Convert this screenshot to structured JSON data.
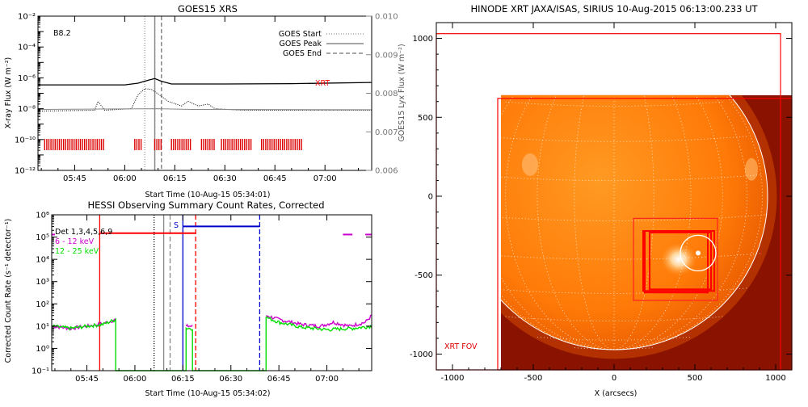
{
  "chart_data": [
    {
      "type": "line",
      "title": "GOES15 XRS",
      "xlabel": "Start Time (10-Aug-15 05:34:01)",
      "ylabel": "X-ray Flux (W m⁻²)",
      "y2label": "GOES15 Lyx Flux (W m⁻²)",
      "x_range": [
        "05:34",
        "07:14"
      ],
      "x_ticks": [
        "05:45",
        "06:00",
        "06:15",
        "06:30",
        "06:45",
        "07:00"
      ],
      "y_scale": "log",
      "ylim": [
        1e-12,
        0.01
      ],
      "y_tick_labels": [
        "10⁻¹²",
        "10⁻¹⁰",
        "10⁻⁸",
        "10⁻⁶",
        "10⁻⁴",
        "10⁻²"
      ],
      "y2lim": [
        0.006,
        0.01
      ],
      "y2_tick_labels": [
        "0.006",
        "0.007",
        "0.008",
        "0.009",
        "0.010"
      ],
      "class_label": "B8.2",
      "legend": {
        "placement": "top-right",
        "entries": [
          {
            "label": "GOES Start",
            "style": "dotted"
          },
          {
            "label": "GOES Peak",
            "style": "solid"
          },
          {
            "label": "GOES End",
            "style": "dashed"
          }
        ]
      },
      "xrt_label": "XRT",
      "events": {
        "start": "06:06",
        "peak": "06:09",
        "end": "06:11"
      },
      "series": [
        {
          "name": "",
          "color": "#000000",
          "points": [
            [
              "05:34",
              3.5e-07
            ],
            [
              "06:00",
              3.5e-07
            ],
            [
              "06:04",
              4.5e-07
            ],
            [
              "06:07",
              7e-07
            ],
            [
              "06:09",
              9e-07
            ],
            [
              "06:11",
              6e-07
            ],
            [
              "06:14",
              4e-07
            ],
            [
              "06:30",
              4e-07
            ],
            [
              "06:50",
              4.2e-07
            ],
            [
              "07:14",
              5e-07
            ]
          ]
        },
        {
          "name": "",
          "color": "#000000",
          "style": "dotted",
          "points": [
            [
              "05:34",
              7e-09
            ],
            [
              "05:51",
              8e-09
            ],
            [
              "05:52",
              3e-08
            ],
            [
              "05:54",
              8e-09
            ],
            [
              "06:02",
              1e-08
            ],
            [
              "06:04",
              8e-08
            ],
            [
              "06:06",
              2e-07
            ],
            [
              "06:08",
              1.8e-07
            ],
            [
              "06:10",
              9e-08
            ],
            [
              "06:13",
              3e-08
            ],
            [
              "06:17",
              1.5e-08
            ],
            [
              "06:19",
              3e-08
            ],
            [
              "06:22",
              1.5e-08
            ],
            [
              "06:25",
              2e-08
            ],
            [
              "06:27",
              1e-08
            ],
            [
              "06:35",
              8e-09
            ],
            [
              "07:14",
              8e-09
            ]
          ]
        },
        {
          "name": "",
          "color": "#888888",
          "points": [
            [
              "05:34",
              9e-09
            ],
            [
              "06:10",
              1e-08
            ],
            [
              "06:20",
              9e-09
            ],
            [
              "07:14",
              8.5e-09
            ]
          ]
        }
      ],
      "xrt_coverage": [
        [
          "05:36",
          "05:54"
        ],
        [
          "06:03",
          "06:05"
        ],
        [
          "06:09",
          "06:11"
        ],
        [
          "06:14",
          "06:20"
        ],
        [
          "06:23",
          "06:27"
        ],
        [
          "06:29",
          "06:38"
        ],
        [
          "06:41",
          "06:53"
        ]
      ]
    },
    {
      "type": "line",
      "title": "HESSI Observing Summary Count Rates, Corrected",
      "xlabel": "Start Time (10-Aug-15 05:34:02)",
      "ylabel": "Corrected Count Rate (s⁻¹ detector⁻¹)",
      "x_range": [
        "05:34",
        "07:14"
      ],
      "x_ticks": [
        "05:45",
        "06:00",
        "06:15",
        "06:30",
        "06:45",
        "07:00"
      ],
      "y_scale": "log",
      "ylim": [
        0.1,
        1000000.0
      ],
      "y_tick_labels": [
        "10⁻¹",
        "10⁰",
        "10¹",
        "10²",
        "10³",
        "10⁴",
        "10⁵",
        "10⁶"
      ],
      "legend": {
        "placement": "top-left",
        "entries": [
          {
            "label": "Det 1,3,4,5,6,9",
            "color": "#000000"
          },
          {
            "label": "6 - 12 keV",
            "color": "#cc00cc"
          },
          {
            "label": "12 - 25 keV",
            "color": "#00dd00"
          }
        ]
      },
      "s_label": "S",
      "series": [
        {
          "name": "6 - 12 keV",
          "color": "#cc00cc",
          "segments": [
            [
              [
                "05:34",
                10
              ],
              [
                "05:40",
                8
              ],
              [
                "05:45",
                10
              ],
              [
                "05:50",
                13
              ],
              [
                "05:54",
                20
              ]
            ],
            [
              [
                "06:16",
                10
              ],
              [
                "06:18",
                10
              ]
            ],
            [
              [
                "06:41",
                30
              ],
              [
                "06:45",
                20
              ],
              [
                "06:52",
                12
              ],
              [
                "06:58",
                10
              ],
              [
                "07:02",
                15
              ],
              [
                "07:07",
                10
              ],
              [
                "07:12",
                15
              ],
              [
                "07:14",
                30
              ]
            ]
          ]
        },
        {
          "name": "12 - 25 keV",
          "color": "#00dd00",
          "segments": [
            [
              [
                "05:34",
                10
              ],
              [
                "05:40",
                8
              ],
              [
                "05:45",
                10
              ],
              [
                "05:50",
                12
              ],
              [
                "05:54",
                20
              ],
              [
                "05:54",
                0.1
              ],
              [
                "06:16",
                0.1
              ],
              [
                "06:16",
                8
              ],
              [
                "06:18",
                8
              ],
              [
                "06:18",
                0.1
              ],
              [
                "06:41",
                0.1
              ],
              [
                "06:41",
                25
              ],
              [
                "06:45",
                15
              ],
              [
                "06:52",
                9
              ],
              [
                "07:00",
                7
              ],
              [
                "07:08",
                8
              ],
              [
                "07:14",
                10
              ]
            ]
          ]
        }
      ],
      "attenuator_bars": [
        {
          "color": "#ff0000",
          "from": "05:49",
          "to": "06:19",
          "level": 150000.0
        },
        {
          "color": "#0000cc",
          "from": "06:15",
          "to": "06:39",
          "level": 300000.0
        }
      ],
      "markers": [
        {
          "time": "05:49",
          "color": "#ff0000",
          "style": "solid"
        },
        {
          "time": "06:06",
          "color": "#000000",
          "style": "dotted"
        },
        {
          "time": "06:09",
          "color": "#888888",
          "style": "solid"
        },
        {
          "time": "06:11",
          "color": "#888888",
          "style": "dashed"
        },
        {
          "time": "06:15",
          "color": "#0000cc",
          "style": "solid"
        },
        {
          "time": "06:19",
          "color": "#ff0000",
          "style": "dashed"
        },
        {
          "time": "06:39",
          "color": "#0000cc",
          "style": "dashed"
        }
      ],
      "end_marks": [
        {
          "color": "#cc00cc",
          "from": "07:05",
          "to": "07:08",
          "level": 130000.0
        },
        {
          "color": "#cc00cc",
          "from": "07:12",
          "to": "07:14",
          "level": 130000.0
        },
        {
          "color": "#cc00cc",
          "from": "05:34",
          "to": "05:35",
          "level": 130000.0
        }
      ]
    },
    {
      "type": "image",
      "title": "HINODE XRT JAXA/ISAS, SIRIUS 10-Aug-2015 06:13:00.233 UT",
      "xlabel": "X (arcsecs)",
      "ylabel": "",
      "xlim": [
        -1100,
        1100
      ],
      "ylim": [
        -1100,
        1100
      ],
      "x_ticks": [
        "-1000",
        "-500",
        "0",
        "500",
        "1000"
      ],
      "y_ticks": [
        "-1000",
        "-500",
        "0",
        "500",
        "1000"
      ],
      "fov_label": "XRT FOV",
      "solar_radius_arcsec": 950,
      "image_extent": [
        -700,
        1100,
        -1100,
        640
      ],
      "fov_boxes": [
        {
          "color": "#ff0000",
          "x": [
            -1100,
            1030
          ],
          "y": [
            -1100,
            1030
          ]
        },
        {
          "color": "#ff0000",
          "x": [
            -720,
            1100
          ],
          "y": [
            -1100,
            620
          ]
        },
        {
          "color": "#ff2222",
          "x": [
            120,
            640
          ],
          "y": [
            -660,
            -140
          ]
        },
        {
          "color": "#ff0000",
          "x": [
            180,
            620
          ],
          "y": [
            -600,
            -220
          ]
        },
        {
          "color": "#ff0000",
          "x": [
            190,
            580
          ],
          "y": [
            -610,
            -220
          ]
        },
        {
          "color": "#ff0000",
          "x": [
            220,
            600
          ],
          "y": [
            -590,
            -230
          ]
        }
      ],
      "flare_circle": {
        "x": 520,
        "y": -360,
        "r": 110
      }
    }
  ]
}
